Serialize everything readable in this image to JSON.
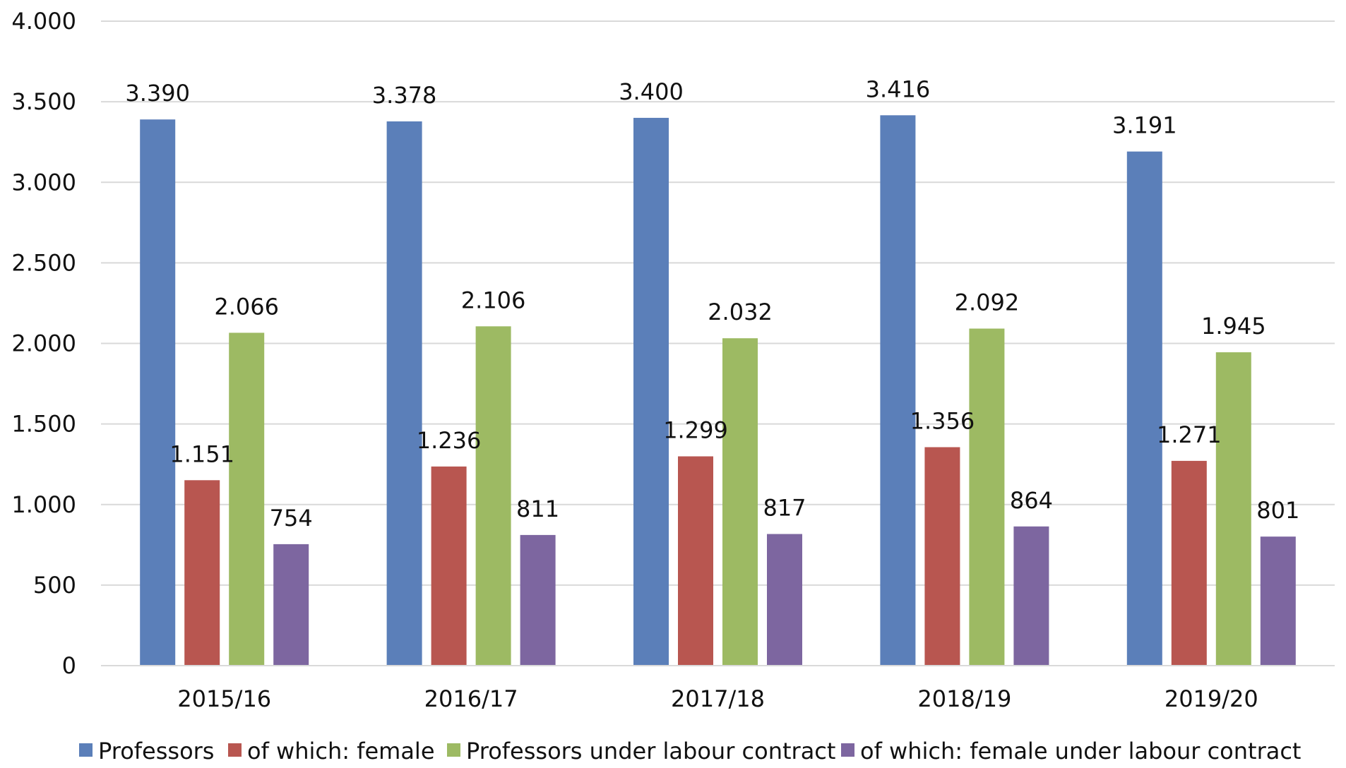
{
  "chart_data": {
    "type": "bar",
    "title": "",
    "xlabel": "",
    "ylabel": "",
    "ylim": [
      0,
      4000
    ],
    "yticks": [
      0,
      500,
      1000,
      1500,
      2000,
      2500,
      3000,
      3500,
      4000
    ],
    "ytick_labels": [
      "0",
      "500",
      "1.000",
      "1.500",
      "2.000",
      "2.500",
      "3.000",
      "3.500",
      "4.000"
    ],
    "grid": true,
    "legend_position": "bottom",
    "categories": [
      "2015/16",
      "2016/17",
      "2017/18",
      "2018/19",
      "2019/20"
    ],
    "series": [
      {
        "name": "Professors",
        "color": "#5B7FB9",
        "values": [
          3390,
          3378,
          3400,
          3416,
          3191
        ],
        "labels": [
          "3.390",
          "3.378",
          "3.400",
          "3.416",
          "3.191"
        ]
      },
      {
        "name": "of which: female",
        "color": "#B85650",
        "values": [
          1151,
          1236,
          1299,
          1356,
          1271
        ],
        "labels": [
          "1.151",
          "1.236",
          "1.299",
          "1.356",
          "1.271"
        ]
      },
      {
        "name": "Professors under labour contract",
        "color": "#9DBA63",
        "values": [
          2066,
          2106,
          2032,
          2092,
          1945
        ],
        "labels": [
          "2.066",
          "2.106",
          "2.032",
          "2.092",
          "1.945"
        ]
      },
      {
        "name": "of which: female under labour contract",
        "color": "#7D66A0",
        "values": [
          754,
          811,
          817,
          864,
          801
        ],
        "labels": [
          "754",
          "811",
          "817",
          "864",
          "801"
        ]
      }
    ]
  }
}
